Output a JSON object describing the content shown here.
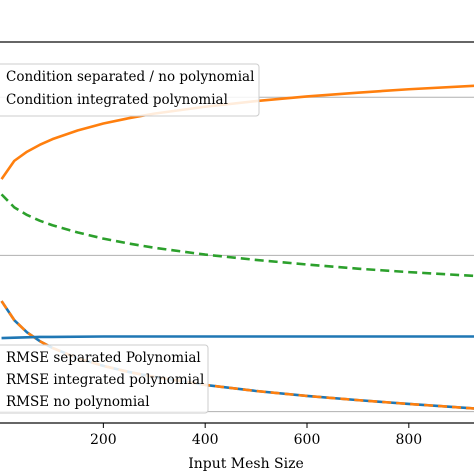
{
  "chart_data": {
    "type": "line",
    "title": "",
    "xlabel": "Input Mesh Size",
    "ylabel": "",
    "xlim": [
      -5,
      930
    ],
    "ylim": [
      0,
      1
    ],
    "grid": true,
    "x_ticks": [
      200,
      400,
      600,
      800
    ],
    "legend_top": {
      "placement": "top-left",
      "entries": [
        "Condition separated / no polynomial",
        "Condition integrated polynomial"
      ]
    },
    "legend_bottom": {
      "placement": "bottom-left",
      "entries": [
        "RMSE separated Polynomial",
        "RMSE integrated polynomial",
        "RMSE no polynomial"
      ]
    },
    "colors": {
      "orange": "#ff7f0e",
      "green": "#2ca02c",
      "blue": "#1f77b4",
      "grid": "#b0b0b0"
    },
    "series": [
      {
        "name": "Condition separated / no polynomial",
        "color": "#ff7f0e",
        "style": "solid",
        "x": [
          0,
          25,
          50,
          75,
          100,
          150,
          200,
          250,
          300,
          400,
          500,
          600,
          700,
          800,
          930
        ],
        "values": [
          0.64,
          0.688,
          0.712,
          0.73,
          0.745,
          0.768,
          0.786,
          0.8,
          0.812,
          0.83,
          0.845,
          0.857,
          0.867,
          0.876,
          0.885
        ]
      },
      {
        "name": "Condition integrated polynomial",
        "color": "#2ca02c",
        "style": "dashed",
        "x": [
          0,
          25,
          50,
          75,
          100,
          150,
          200,
          250,
          300,
          400,
          500,
          600,
          700,
          800,
          930
        ],
        "values": [
          0.6,
          0.566,
          0.546,
          0.531,
          0.519,
          0.5,
          0.484,
          0.471,
          0.46,
          0.442,
          0.428,
          0.416,
          0.405,
          0.396,
          0.386
        ]
      },
      {
        "name": "RMSE separated Polynomial",
        "color": "#1f77b4",
        "style": "solid",
        "x": [
          0,
          25,
          50,
          75,
          100,
          150,
          200,
          250,
          300,
          400,
          500,
          600,
          700,
          800,
          930
        ],
        "values": [
          0.32,
          0.27,
          0.238,
          0.215,
          0.197,
          0.17,
          0.15,
          0.134,
          0.121,
          0.1,
          0.084,
          0.071,
          0.06,
          0.05,
          0.038
        ]
      },
      {
        "name": "RMSE integrated polynomial",
        "color": "#ff7f0e",
        "style": "dashed",
        "x": [
          0,
          25,
          50,
          75,
          100,
          150,
          200,
          250,
          300,
          400,
          500,
          600,
          700,
          800,
          930
        ],
        "values": [
          0.32,
          0.27,
          0.238,
          0.215,
          0.197,
          0.17,
          0.15,
          0.134,
          0.121,
          0.1,
          0.084,
          0.071,
          0.06,
          0.05,
          0.038
        ]
      },
      {
        "name": "RMSE no polynomial",
        "color": "#1f77b4",
        "style": "solid",
        "x": [
          0,
          25,
          50,
          75,
          100,
          200,
          400,
          600,
          800,
          930
        ],
        "values": [
          0.223,
          0.224,
          0.225,
          0.226,
          0.226,
          0.227,
          0.227,
          0.227,
          0.227,
          0.227
        ]
      }
    ]
  }
}
